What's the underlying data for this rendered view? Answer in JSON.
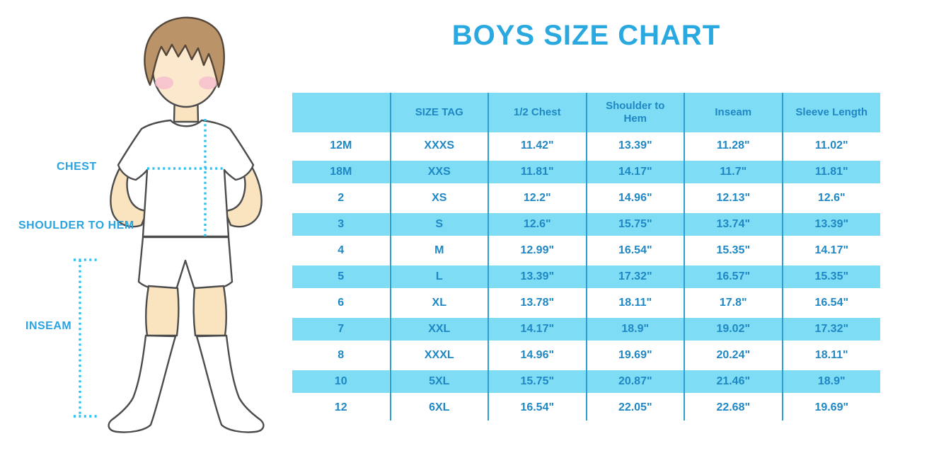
{
  "title": "BOYS SIZE CHART",
  "measurement_labels": {
    "chest": "CHEST",
    "shoulder_to_hem": "SHOULDER TO HEM",
    "inseam": "INSEAM"
  },
  "colors": {
    "title": "#29a9e0",
    "label": "#29a4e0",
    "table_text": "#1f88c4",
    "stripe": "#7edcf5",
    "divider": "#2d9ed3",
    "dotted_line": "#2cc2f1"
  },
  "chart_data": {
    "type": "table",
    "title": "BOYS SIZE CHART",
    "columns": [
      "",
      "SIZE TAG",
      "1/2 Chest",
      "Shoulder to Hem",
      "Inseam",
      "Sleeve Length"
    ],
    "rows": [
      [
        "12M",
        "XXXS",
        "11.42\"",
        "13.39\"",
        "11.28\"",
        "11.02\""
      ],
      [
        "18M",
        "XXS",
        "11.81\"",
        "14.17\"",
        "11.7\"",
        "11.81\""
      ],
      [
        "2",
        "XS",
        "12.2\"",
        "14.96\"",
        "12.13\"",
        "12.6\""
      ],
      [
        "3",
        "S",
        "12.6\"",
        "15.75\"",
        "13.74\"",
        "13.39\""
      ],
      [
        "4",
        "M",
        "12.99\"",
        "16.54\"",
        "15.35\"",
        "14.17\""
      ],
      [
        "5",
        "L",
        "13.39\"",
        "17.32\"",
        "16.57\"",
        "15.35\""
      ],
      [
        "6",
        "XL",
        "13.78\"",
        "18.11\"",
        "17.8\"",
        "16.54\""
      ],
      [
        "7",
        "XXL",
        "14.17\"",
        "18.9\"",
        "19.02\"",
        "17.32\""
      ],
      [
        "8",
        "XXXL",
        "14.96\"",
        "19.69\"",
        "20.24\"",
        "18.11\""
      ],
      [
        "10",
        "5XL",
        "15.75\"",
        "20.87\"",
        "21.46\"",
        "18.9\""
      ],
      [
        "12",
        "6XL",
        "16.54\"",
        "22.05\"",
        "22.68\"",
        "19.69\""
      ]
    ]
  }
}
